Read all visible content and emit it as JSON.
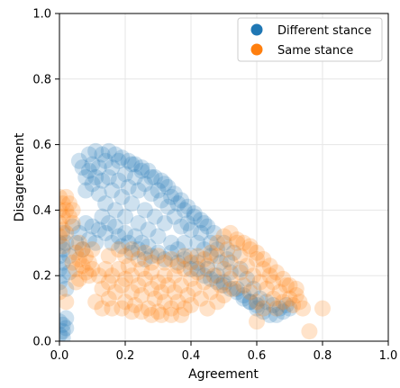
{
  "chart_data": {
    "type": "scatter",
    "xlabel": "Agreement",
    "ylabel": "Disagreement",
    "xlim": [
      0.0,
      1.0
    ],
    "ylim": [
      0.0,
      1.0
    ],
    "xticks": [
      "0.0",
      "0.2",
      "0.4",
      "0.6",
      "0.8",
      "1.0"
    ],
    "yticks": [
      "0.0",
      "0.2",
      "0.4",
      "0.6",
      "0.8",
      "1.0"
    ],
    "grid": true,
    "legend_position": "top-right",
    "series": [
      {
        "name": "Different stance",
        "color": "#1f77b4",
        "points": [
          [
            0.06,
            0.55
          ],
          [
            0.07,
            0.53
          ],
          [
            0.08,
            0.5
          ],
          [
            0.08,
            0.46
          ],
          [
            0.09,
            0.52
          ],
          [
            0.1,
            0.48
          ],
          [
            0.1,
            0.54
          ],
          [
            0.11,
            0.5
          ],
          [
            0.12,
            0.45
          ],
          [
            0.12,
            0.53
          ],
          [
            0.13,
            0.49
          ],
          [
            0.14,
            0.55
          ],
          [
            0.14,
            0.42
          ],
          [
            0.15,
            0.5
          ],
          [
            0.16,
            0.46
          ],
          [
            0.16,
            0.53
          ],
          [
            0.17,
            0.4
          ],
          [
            0.18,
            0.49
          ],
          [
            0.18,
            0.55
          ],
          [
            0.19,
            0.44
          ],
          [
            0.2,
            0.51
          ],
          [
            0.2,
            0.38
          ],
          [
            0.21,
            0.47
          ],
          [
            0.22,
            0.54
          ],
          [
            0.22,
            0.42
          ],
          [
            0.23,
            0.5
          ],
          [
            0.24,
            0.36
          ],
          [
            0.24,
            0.46
          ],
          [
            0.25,
            0.52
          ],
          [
            0.26,
            0.4
          ],
          [
            0.26,
            0.48
          ],
          [
            0.27,
            0.34
          ],
          [
            0.28,
            0.45
          ],
          [
            0.28,
            0.5
          ],
          [
            0.29,
            0.38
          ],
          [
            0.3,
            0.46
          ],
          [
            0.3,
            0.32
          ],
          [
            0.31,
            0.43
          ],
          [
            0.32,
            0.48
          ],
          [
            0.32,
            0.36
          ],
          [
            0.33,
            0.41
          ],
          [
            0.34,
            0.3
          ],
          [
            0.34,
            0.44
          ],
          [
            0.35,
            0.38
          ],
          [
            0.36,
            0.42
          ],
          [
            0.36,
            0.28
          ],
          [
            0.37,
            0.35
          ],
          [
            0.38,
            0.4
          ],
          [
            0.38,
            0.3
          ],
          [
            0.39,
            0.36
          ],
          [
            0.4,
            0.26
          ],
          [
            0.4,
            0.34
          ],
          [
            0.41,
            0.38
          ],
          [
            0.42,
            0.3
          ],
          [
            0.42,
            0.24
          ],
          [
            0.43,
            0.33
          ],
          [
            0.44,
            0.28
          ],
          [
            0.44,
            0.36
          ],
          [
            0.45,
            0.22
          ],
          [
            0.46,
            0.3
          ],
          [
            0.46,
            0.26
          ],
          [
            0.47,
            0.33
          ],
          [
            0.48,
            0.2
          ],
          [
            0.48,
            0.28
          ],
          [
            0.49,
            0.24
          ],
          [
            0.5,
            0.3
          ],
          [
            0.5,
            0.18
          ],
          [
            0.51,
            0.25
          ],
          [
            0.52,
            0.21
          ],
          [
            0.53,
            0.27
          ],
          [
            0.54,
            0.16
          ],
          [
            0.55,
            0.22
          ],
          [
            0.56,
            0.14
          ],
          [
            0.57,
            0.19
          ],
          [
            0.58,
            0.12
          ],
          [
            0.59,
            0.16
          ],
          [
            0.6,
            0.1
          ],
          [
            0.61,
            0.13
          ],
          [
            0.62,
            0.09
          ],
          [
            0.63,
            0.12
          ],
          [
            0.64,
            0.08
          ],
          [
            0.65,
            0.11
          ],
          [
            0.66,
            0.08
          ],
          [
            0.67,
            0.1
          ],
          [
            0.68,
            0.09
          ],
          [
            0.69,
            0.11
          ],
          [
            0.7,
            0.1
          ],
          [
            0.0,
            0.3
          ],
          [
            0.0,
            0.26
          ],
          [
            0.0,
            0.22
          ],
          [
            0.0,
            0.18
          ],
          [
            0.01,
            0.33
          ],
          [
            0.01,
            0.28
          ],
          [
            0.01,
            0.2
          ],
          [
            0.01,
            0.24
          ],
          [
            0.02,
            0.3
          ],
          [
            0.02,
            0.16
          ],
          [
            0.03,
            0.26
          ],
          [
            0.03,
            0.21
          ],
          [
            0.04,
            0.35
          ],
          [
            0.05,
            0.3
          ],
          [
            0.06,
            0.33
          ],
          [
            0.07,
            0.28
          ],
          [
            0.08,
            0.36
          ],
          [
            0.09,
            0.31
          ],
          [
            0.1,
            0.35
          ],
          [
            0.11,
            0.3
          ],
          [
            0.12,
            0.34
          ],
          [
            0.13,
            0.38
          ],
          [
            0.14,
            0.33
          ],
          [
            0.15,
            0.36
          ],
          [
            0.16,
            0.3
          ],
          [
            0.17,
            0.35
          ],
          [
            0.18,
            0.32
          ],
          [
            0.19,
            0.29
          ],
          [
            0.2,
            0.33
          ],
          [
            0.21,
            0.3
          ],
          [
            0.22,
            0.27
          ],
          [
            0.23,
            0.32
          ],
          [
            0.24,
            0.28
          ],
          [
            0.25,
            0.3
          ],
          [
            0.26,
            0.25
          ],
          [
            0.27,
            0.29
          ],
          [
            0.28,
            0.26
          ],
          [
            0.3,
            0.27
          ],
          [
            0.32,
            0.25
          ],
          [
            0.34,
            0.27
          ],
          [
            0.36,
            0.24
          ],
          [
            0.38,
            0.25
          ],
          [
            0.4,
            0.22
          ],
          [
            0.42,
            0.22
          ],
          [
            0.44,
            0.2
          ],
          [
            0.46,
            0.19
          ],
          [
            0.48,
            0.18
          ],
          [
            0.5,
            0.17
          ],
          [
            0.52,
            0.16
          ],
          [
            0.54,
            0.15
          ],
          [
            0.56,
            0.13
          ],
          [
            0.58,
            0.12
          ],
          [
            0.6,
            0.11
          ],
          [
            0.0,
            0.06
          ],
          [
            0.01,
            0.05
          ],
          [
            0.01,
            0.03
          ],
          [
            0.02,
            0.04
          ],
          [
            0.0,
            0.02
          ],
          [
            0.02,
            0.07
          ],
          [
            0.01,
            0.01
          ],
          [
            0.09,
            0.57
          ],
          [
            0.11,
            0.58
          ],
          [
            0.13,
            0.57
          ],
          [
            0.15,
            0.58
          ],
          [
            0.17,
            0.57
          ],
          [
            0.19,
            0.56
          ],
          [
            0.21,
            0.55
          ],
          [
            0.23,
            0.54
          ],
          [
            0.25,
            0.53
          ],
          [
            0.27,
            0.52
          ],
          [
            0.29,
            0.5
          ],
          [
            0.31,
            0.49
          ],
          [
            0.33,
            0.47
          ],
          [
            0.35,
            0.45
          ],
          [
            0.37,
            0.43
          ],
          [
            0.39,
            0.41
          ],
          [
            0.41,
            0.39
          ],
          [
            0.43,
            0.37
          ],
          [
            0.45,
            0.35
          ]
        ]
      },
      {
        "name": "Same stance",
        "color": "#ff7f0e",
        "points": [
          [
            0.0,
            0.44
          ],
          [
            0.0,
            0.4
          ],
          [
            0.0,
            0.36
          ],
          [
            0.01,
            0.42
          ],
          [
            0.01,
            0.38
          ],
          [
            0.01,
            0.34
          ],
          [
            0.02,
            0.4
          ],
          [
            0.02,
            0.44
          ],
          [
            0.03,
            0.38
          ],
          [
            0.03,
            0.42
          ],
          [
            0.04,
            0.4
          ],
          [
            0.04,
            0.36
          ],
          [
            0.0,
            0.32
          ],
          [
            0.01,
            0.29
          ],
          [
            0.02,
            0.33
          ],
          [
            0.05,
            0.27
          ],
          [
            0.05,
            0.22
          ],
          [
            0.06,
            0.25
          ],
          [
            0.06,
            0.19
          ],
          [
            0.07,
            0.23
          ],
          [
            0.07,
            0.28
          ],
          [
            0.08,
            0.21
          ],
          [
            0.08,
            0.26
          ],
          [
            0.09,
            0.24
          ],
          [
            0.09,
            0.2
          ],
          [
            0.04,
            0.24
          ],
          [
            0.05,
            0.18
          ],
          [
            0.06,
            0.3
          ],
          [
            0.1,
            0.22
          ],
          [
            0.1,
            0.28
          ],
          [
            0.12,
            0.2
          ],
          [
            0.13,
            0.16
          ],
          [
            0.14,
            0.22
          ],
          [
            0.15,
            0.18
          ],
          [
            0.15,
            0.13
          ],
          [
            0.16,
            0.2
          ],
          [
            0.17,
            0.15
          ],
          [
            0.18,
            0.22
          ],
          [
            0.19,
            0.17
          ],
          [
            0.2,
            0.12
          ],
          [
            0.2,
            0.19
          ],
          [
            0.21,
            0.23
          ],
          [
            0.22,
            0.15
          ],
          [
            0.22,
            0.2
          ],
          [
            0.23,
            0.11
          ],
          [
            0.24,
            0.17
          ],
          [
            0.25,
            0.22
          ],
          [
            0.25,
            0.14
          ],
          [
            0.26,
            0.19
          ],
          [
            0.27,
            0.1
          ],
          [
            0.28,
            0.16
          ],
          [
            0.28,
            0.21
          ],
          [
            0.29,
            0.13
          ],
          [
            0.3,
            0.18
          ],
          [
            0.3,
            0.09
          ],
          [
            0.31,
            0.15
          ],
          [
            0.32,
            0.2
          ],
          [
            0.32,
            0.12
          ],
          [
            0.33,
            0.17
          ],
          [
            0.34,
            0.1
          ],
          [
            0.35,
            0.15
          ],
          [
            0.35,
            0.2
          ],
          [
            0.36,
            0.12
          ],
          [
            0.37,
            0.17
          ],
          [
            0.38,
            0.1
          ],
          [
            0.38,
            0.22
          ],
          [
            0.39,
            0.14
          ],
          [
            0.4,
            0.19
          ],
          [
            0.4,
            0.11
          ],
          [
            0.41,
            0.16
          ],
          [
            0.42,
            0.21
          ],
          [
            0.43,
            0.13
          ],
          [
            0.44,
            0.18
          ],
          [
            0.45,
            0.1
          ],
          [
            0.45,
            0.23
          ],
          [
            0.46,
            0.15
          ],
          [
            0.47,
            0.2
          ],
          [
            0.48,
            0.12
          ],
          [
            0.48,
            0.26
          ],
          [
            0.49,
            0.17
          ],
          [
            0.5,
            0.22
          ],
          [
            0.5,
            0.14
          ],
          [
            0.51,
            0.28
          ],
          [
            0.52,
            0.19
          ],
          [
            0.52,
            0.24
          ],
          [
            0.53,
            0.16
          ],
          [
            0.54,
            0.3
          ],
          [
            0.55,
            0.21
          ],
          [
            0.55,
            0.26
          ],
          [
            0.56,
            0.17
          ],
          [
            0.57,
            0.23
          ],
          [
            0.58,
            0.28
          ],
          [
            0.58,
            0.15
          ],
          [
            0.59,
            0.2
          ],
          [
            0.6,
            0.25
          ],
          [
            0.6,
            0.12
          ],
          [
            0.61,
            0.18
          ],
          [
            0.62,
            0.22
          ],
          [
            0.62,
            0.1
          ],
          [
            0.63,
            0.16
          ],
          [
            0.64,
            0.2
          ],
          [
            0.65,
            0.13
          ],
          [
            0.65,
            0.18
          ],
          [
            0.66,
            0.1
          ],
          [
            0.67,
            0.15
          ],
          [
            0.68,
            0.12
          ],
          [
            0.69,
            0.17
          ],
          [
            0.7,
            0.13
          ],
          [
            0.71,
            0.11
          ],
          [
            0.72,
            0.14
          ],
          [
            0.73,
            0.12
          ],
          [
            0.74,
            0.1
          ],
          [
            0.15,
            0.26
          ],
          [
            0.18,
            0.28
          ],
          [
            0.2,
            0.26
          ],
          [
            0.22,
            0.28
          ],
          [
            0.24,
            0.25
          ],
          [
            0.26,
            0.27
          ],
          [
            0.28,
            0.24
          ],
          [
            0.3,
            0.26
          ],
          [
            0.32,
            0.24
          ],
          [
            0.34,
            0.25
          ],
          [
            0.36,
            0.23
          ],
          [
            0.38,
            0.26
          ],
          [
            0.4,
            0.24
          ],
          [
            0.42,
            0.26
          ],
          [
            0.44,
            0.25
          ],
          [
            0.46,
            0.27
          ],
          [
            0.48,
            0.3
          ],
          [
            0.5,
            0.32
          ],
          [
            0.52,
            0.33
          ],
          [
            0.54,
            0.31
          ],
          [
            0.56,
            0.3
          ],
          [
            0.58,
            0.29
          ],
          [
            0.6,
            0.27
          ],
          [
            0.62,
            0.25
          ],
          [
            0.64,
            0.23
          ],
          [
            0.66,
            0.21
          ],
          [
            0.68,
            0.19
          ],
          [
            0.7,
            0.17
          ],
          [
            0.72,
            0.16
          ],
          [
            0.11,
            0.12
          ],
          [
            0.13,
            0.1
          ],
          [
            0.16,
            0.1
          ],
          [
            0.19,
            0.1
          ],
          [
            0.22,
            0.09
          ],
          [
            0.25,
            0.09
          ],
          [
            0.28,
            0.08
          ],
          [
            0.31,
            0.08
          ],
          [
            0.34,
            0.08
          ],
          [
            0.37,
            0.08
          ],
          [
            0.76,
            0.03
          ],
          [
            0.8,
            0.1
          ],
          [
            0.6,
            0.06
          ],
          [
            0.02,
            0.12
          ],
          [
            0.0,
            0.15
          ]
        ]
      }
    ]
  }
}
